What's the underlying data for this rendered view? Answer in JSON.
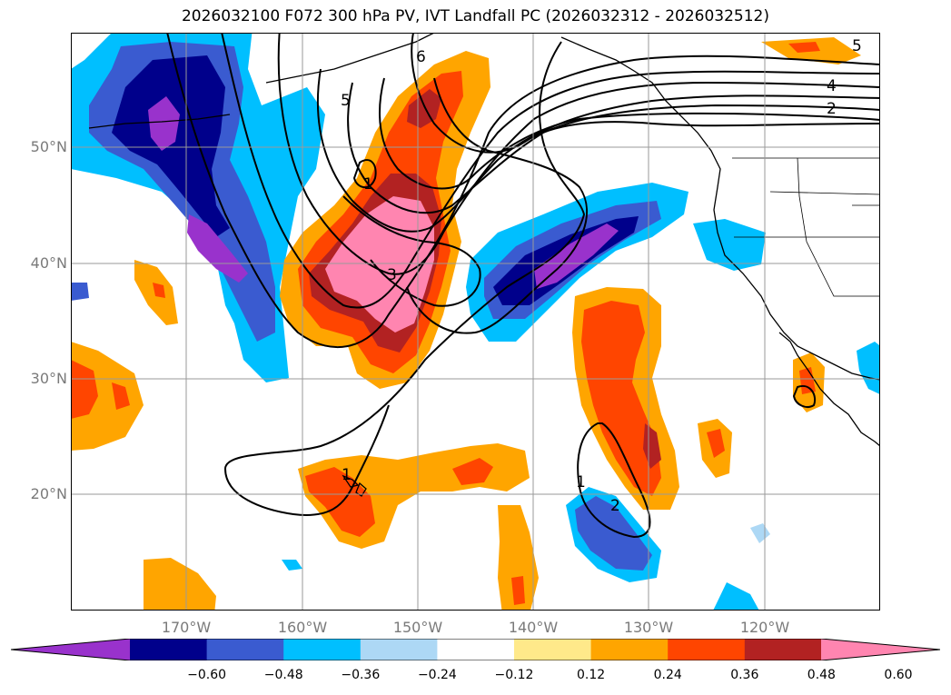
{
  "title": "2026032100 F072 300 hPa PV, IVT Landfall PC (2026032312 - 2026032512)",
  "lat_labels": [
    "50°N",
    "40°N",
    "30°N",
    "20°N"
  ],
  "lon_labels": [
    "170°W",
    "160°W",
    "150°W",
    "140°W",
    "130°W",
    "120°W"
  ],
  "contour_labels": [
    "6",
    "5",
    "4",
    "2",
    "3",
    "1",
    "1",
    "1",
    "2",
    "5"
  ],
  "colorbar": {
    "ticks": [
      "−0.60",
      "−0.48",
      "−0.36",
      "−0.24",
      "−0.12",
      "0.12",
      "0.24",
      "0.36",
      "0.48",
      "0.60"
    ],
    "colors": [
      "#9932cc",
      "#00008b",
      "#3a5bd0",
      "#00bfff",
      "#add8f5",
      "#ffffff",
      "#ffe98a",
      "#ffa500",
      "#ff4500",
      "#b22222",
      "#ff85b0",
      "#ff85b0"
    ]
  }
}
